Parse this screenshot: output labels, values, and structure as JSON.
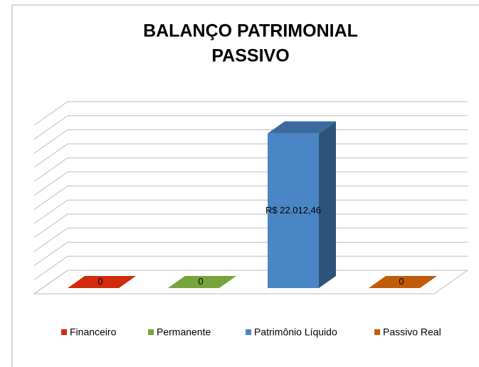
{
  "chart_data": {
    "type": "bar",
    "title": [
      "BALANÇO PATRIMONIAL",
      "PASSIVO"
    ],
    "categories": [
      "Financeiro",
      "Permanente",
      "Patrimônio Líquido",
      "Passivo Real"
    ],
    "values": [
      0,
      0,
      22012.46,
      0
    ],
    "value_labels": [
      "0",
      "0",
      "R$ 22.012,46",
      "0"
    ],
    "colors": [
      "#d22a0c",
      "#76a33b",
      "#4a86c5",
      "#c05b0a"
    ],
    "ylim": [
      0,
      24000
    ],
    "yticks": [
      0,
      2000,
      4000,
      6000,
      8000,
      10000,
      12000,
      14000,
      16000,
      18000,
      20000,
      22000,
      24000
    ],
    "grid": true,
    "legend": "bottom"
  }
}
